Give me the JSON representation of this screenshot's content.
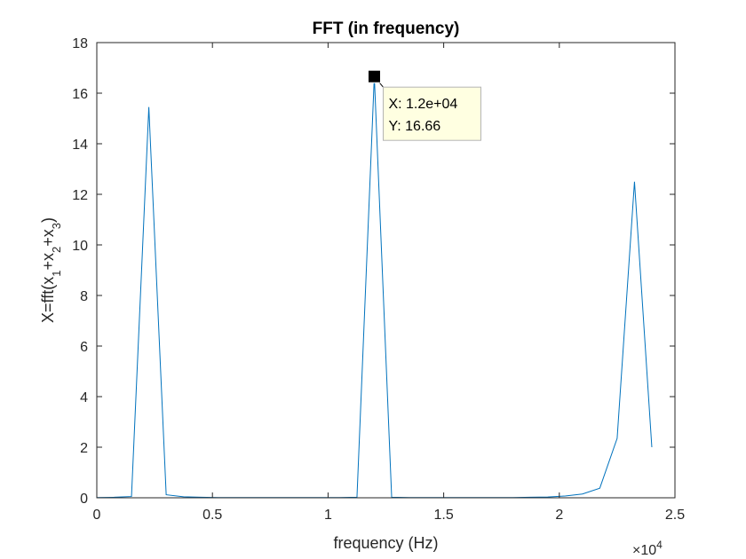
{
  "chart_data": {
    "type": "line",
    "title": "FFT (in frequency)",
    "xlabel": "frequency (Hz)",
    "ylabel": {
      "base": "X=fft(x",
      "parts": [
        {
          "sub": "1"
        },
        {
          "text": "+x"
        },
        {
          "sub": "2"
        },
        {
          "text": "+x"
        },
        {
          "sub": "3"
        },
        {
          "text": ")"
        }
      ]
    },
    "xlim": [
      0,
      25000
    ],
    "ylim": [
      0,
      18
    ],
    "xticks": [
      0,
      5000,
      10000,
      15000,
      20000,
      25000
    ],
    "xtick_labels": [
      "0",
      "0.5",
      "1",
      "1.5",
      "2",
      "2.5"
    ],
    "x_exponent": {
      "base": "×10",
      "exp": "4"
    },
    "yticks": [
      0,
      2,
      4,
      6,
      8,
      10,
      12,
      14,
      16,
      18
    ],
    "ytick_labels": [
      "0",
      "2",
      "4",
      "6",
      "8",
      "10",
      "12",
      "14",
      "16",
      "18"
    ],
    "grid": false,
    "series": [
      {
        "color": "#0072BD",
        "x": [
          0,
          750,
          1500,
          2250,
          3000,
          3750,
          4500,
          5250,
          6000,
          6750,
          7500,
          8250,
          9000,
          9750,
          10500,
          11250,
          12000,
          12750,
          13500,
          14250,
          15000,
          15750,
          16500,
          17250,
          18000,
          18750,
          19500,
          20250,
          21000,
          21750,
          22500,
          23250,
          24000
        ],
        "y": [
          0.01,
          0.02,
          0.05,
          15.45,
          0.12,
          0.04,
          0.02,
          0.01,
          0.01,
          0.01,
          0.01,
          0.01,
          0.01,
          0.01,
          0.01,
          0.02,
          16.66,
          0.02,
          0.01,
          0.01,
          0.01,
          0.01,
          0.01,
          0.01,
          0.01,
          0.02,
          0.03,
          0.07,
          0.15,
          0.38,
          2.35,
          12.5,
          2.0
        ]
      }
    ],
    "datatip": {
      "x": 12000,
      "y": 16.66,
      "x_text": "X: 1.2e+04",
      "y_text": "Y: 16.66"
    }
  }
}
